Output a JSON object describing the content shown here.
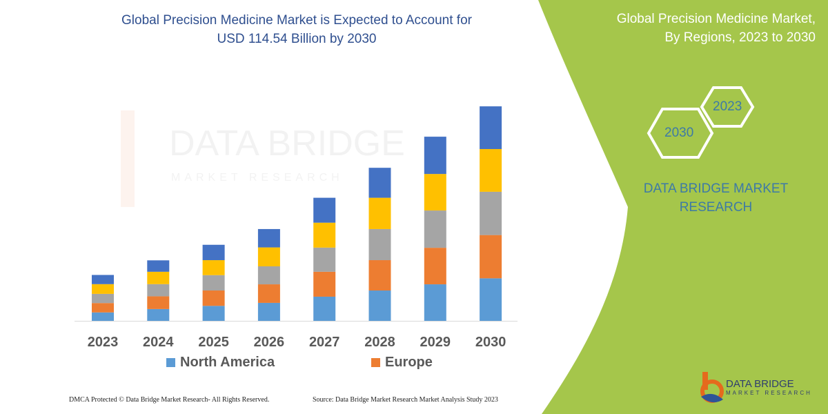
{
  "title_line1": "Global Precision Medicine Market is Expected to Account for",
  "title_line2": "USD 114.54 Billion by 2030",
  "side_panel": {
    "title_line1": "Global Precision Medicine Market,",
    "title_line2": "By Regions, 2023 to 2030",
    "hex_start": "2023",
    "hex_end": "2030",
    "brand_line1": "DATA BRIDGE MARKET",
    "brand_line2": "RESEARCH",
    "color": "#a5c64b"
  },
  "watermark": {
    "line1": "DATA BRIDGE",
    "line2": "MARKET RESEARCH"
  },
  "chart_data": {
    "type": "bar",
    "stacked": true,
    "categories": [
      "2023",
      "2024",
      "2025",
      "2026",
      "2027",
      "2028",
      "2029",
      "2030"
    ],
    "series": [
      {
        "name": "North America",
        "color": "#5b9bd5",
        "values": [
          4.5,
          6.3,
          8.0,
          9.6,
          12.9,
          16.2,
          19.5,
          22.7
        ]
      },
      {
        "name": "Europe",
        "color": "#ed7d31",
        "values": [
          5.0,
          6.8,
          8.2,
          9.9,
          13.3,
          16.2,
          19.5,
          23.1
        ]
      },
      {
        "color": "#a5a5a5",
        "values": [
          4.9,
          6.5,
          8.2,
          9.6,
          12.9,
          16.6,
          19.9,
          23.1
        ]
      },
      {
        "color": "#ffc000",
        "values": [
          5.2,
          6.6,
          8.0,
          10.1,
          13.3,
          16.7,
          19.5,
          22.8
        ]
      },
      {
        "color": "#4472c4",
        "values": [
          4.9,
          6.1,
          8.2,
          9.8,
          13.3,
          16.0,
          19.9,
          22.8
        ]
      }
    ],
    "ylim": [
      0,
      114.54
    ],
    "grid": false,
    "legend": "bottom"
  },
  "footer": {
    "left": "DMCA Protected © Data Bridge Market Research-  All Rights Reserved.",
    "right": "Source: Data Bridge Market Research  Market Analysis Study 2023"
  },
  "logo": {
    "name": "DATA BRIDGE",
    "sub": "MARKET RESEARCH"
  }
}
